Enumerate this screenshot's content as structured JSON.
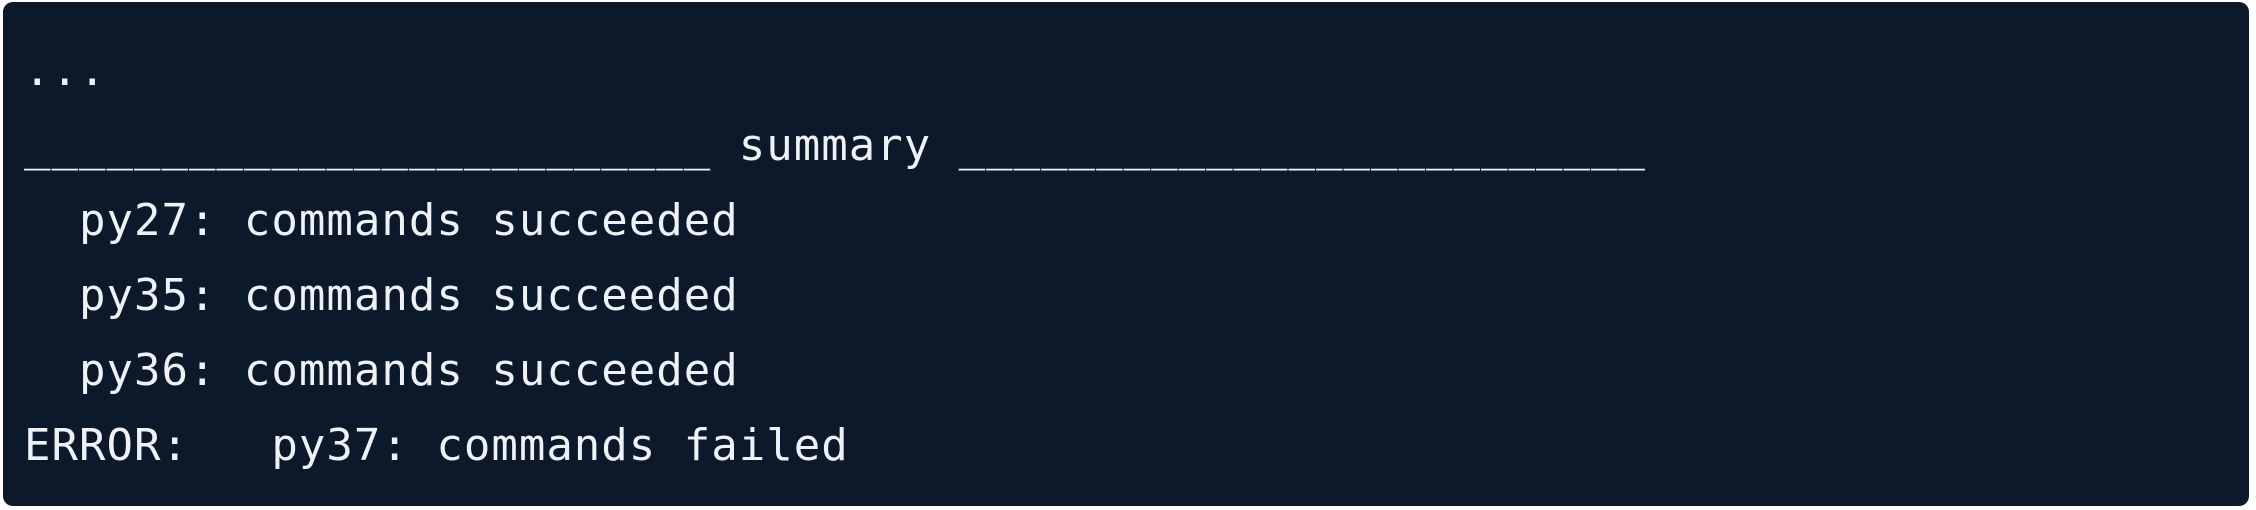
{
  "terminal": {
    "lines": [
      "...",
      "_________________________ summary _________________________",
      "  py27: commands succeeded",
      "  py35: commands succeeded",
      "  py36: commands succeeded",
      "ERROR:   py37: commands failed"
    ]
  }
}
